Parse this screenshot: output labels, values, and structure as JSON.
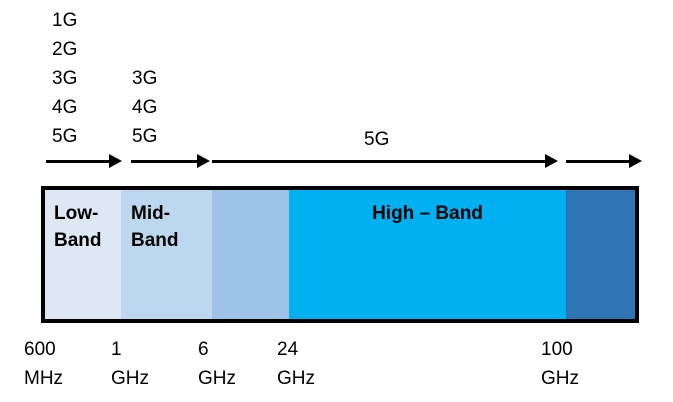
{
  "generations": {
    "low": [
      "1G",
      "2G",
      "3G",
      "4G",
      "5G"
    ],
    "mid": [
      "3G",
      "4G",
      "5G"
    ],
    "high": [
      "5G"
    ]
  },
  "bands": {
    "low_line1": "Low-",
    "low_line2": "Band",
    "mid_line1": "Mid-",
    "mid_line2": "Band",
    "high": "High – Band"
  },
  "colors": {
    "low": "#dee8f5",
    "mid": "#bdd7ee",
    "upper_mid": "#9dc3e6",
    "high": "#00b0f0",
    "upper_high": "#2e75b6"
  },
  "ticks": [
    {
      "value": "600",
      "unit": "MHz"
    },
    {
      "value": "1",
      "unit": "GHz"
    },
    {
      "value": "6",
      "unit": "GHz"
    },
    {
      "value": "24",
      "unit": "GHz"
    },
    {
      "value": "100",
      "unit": "GHz"
    }
  ]
}
